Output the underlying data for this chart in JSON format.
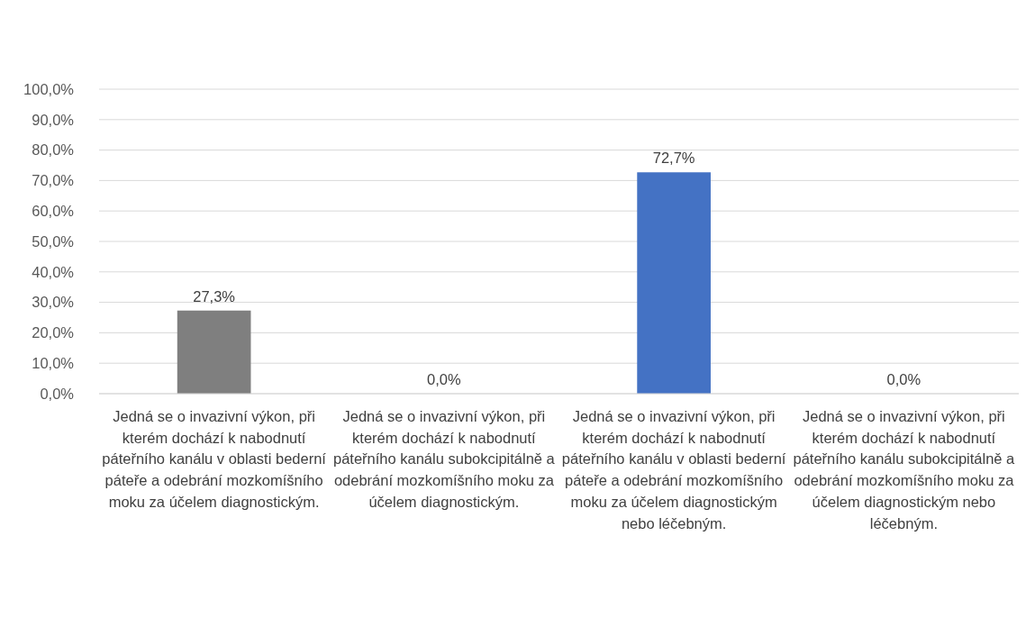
{
  "chart_data": {
    "type": "bar",
    "categories": [
      "Jedná se o invazivní výkon, při kterém dochází k nabodnutí páteřního kanálu v oblasti bederní páteře a odebrání mozkomíšního moku za účelem diagnostickým.",
      "Jedná se o invazivní výkon, při kterém dochází k nabodnutí páteřního kanálu subokcipitálně a odebrání mozkomíšního moku za účelem diagnostickým.",
      "Jedná se o invazivní výkon, při kterém dochází k nabodnutí páteřního kanálu v oblasti bederní páteře a odebrání mozkomíšního moku za účelem diagnostickým nebo léčebným.",
      "Jedná se o invazivní výkon, při kterém dochází k nabodnutí páteřního kanálu subokcipitálně a odebrání mozkomíšního moku za účelem diagnostickým nebo léčebným."
    ],
    "values": [
      27.3,
      0,
      72.7,
      0
    ],
    "colors": [
      "#7f7f7f",
      "#7f7f7f",
      "#4472c4",
      "#4472c4"
    ],
    "value_labels": [
      "27,3%",
      "0,0%",
      "72,7%",
      "0,0%"
    ],
    "ylim": [
      0,
      100
    ],
    "yticks": [
      {
        "value": 0,
        "label": "0,0%"
      },
      {
        "value": 10,
        "label": "10,0%"
      },
      {
        "value": 20,
        "label": "20,0%"
      },
      {
        "value": 30,
        "label": "30,0%"
      },
      {
        "value": 40,
        "label": "40,0%"
      },
      {
        "value": 50,
        "label": "50,0%"
      },
      {
        "value": 60,
        "label": "60,0%"
      },
      {
        "value": 70,
        "label": "70,0%"
      },
      {
        "value": 80,
        "label": "80,0%"
      },
      {
        "value": 90,
        "label": "90,0%"
      },
      {
        "value": 100,
        "label": "100,0%"
      }
    ],
    "grid": "y"
  }
}
